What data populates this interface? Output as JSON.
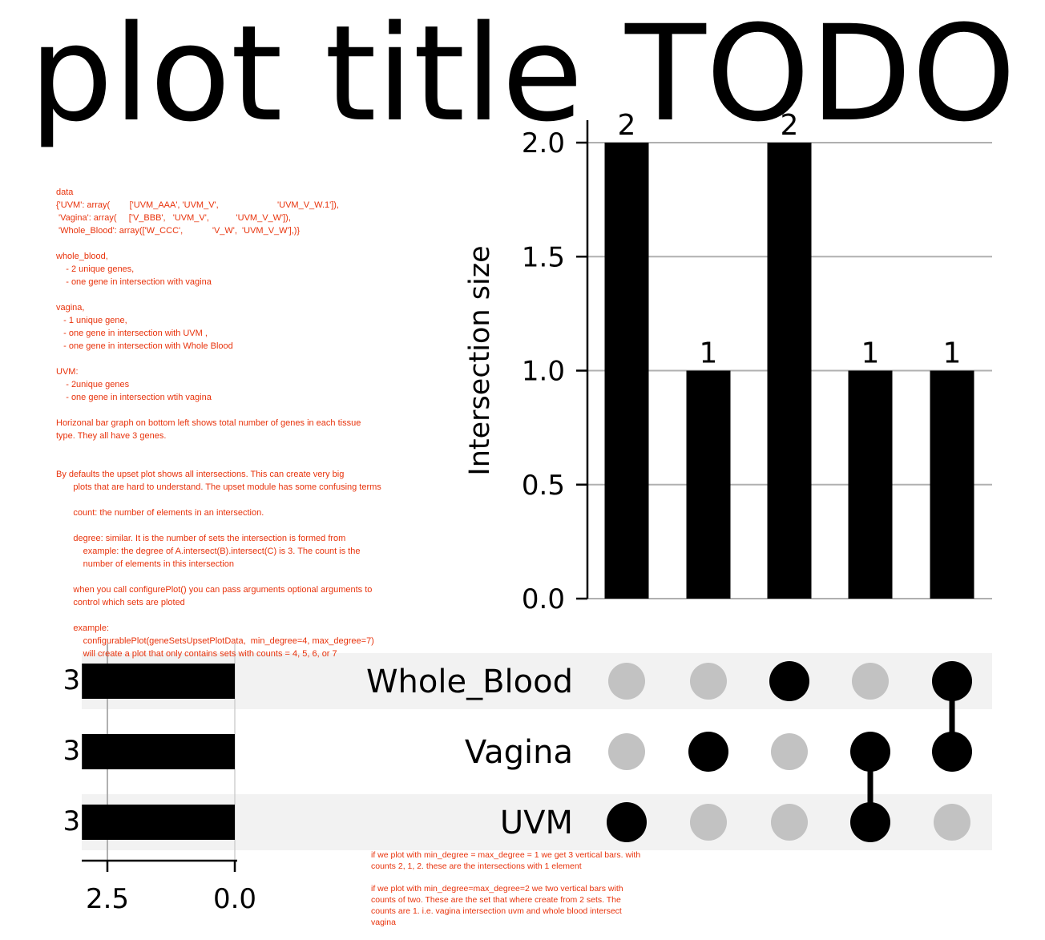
{
  "title": "plot title TODO",
  "annotations": {
    "main": "data\n{'UVM': array(        ['UVM_AAA', 'UVM_V',                        'UVM_V_W.1']),\n 'Vagina': array(     ['V_BBB',   'UVM_V',           'UVM_V_W']),\n 'Whole_Blood': array(['W_CCC',            'V_W',  'UVM_V_W'],)}\n\nwhole_blood,\n    - 2 unique genes,\n    - one gene in intersection with vagina\n\nvagina,\n   - 1 unique gene,\n   - one gene in intersection with UVM ,\n   - one gene in intersection with Whole Blood\n\nUVM:\n    - 2unique genes\n    - one gene in intersection wtih vagina\n\nHorizonal bar graph on bottom left shows total number of genes in each tissue\ntype. They all have 3 genes.\n\n\nBy defaults the upset plot shows all intersections. This can create very big\n       plots that are hard to understand. The upset module has some confusing terms\n\n       count: the number of elements in an intersection.\n\n       degree: similar. It is the number of sets the intersection is formed from\n           example: the degree of A.intersect(B).intersect(C) is 3. The count is the\n           number of elements in this intersection\n\n       when you call configurePlot() you can pass arguments optional arguments to\n       control which sets are ploted\n\n       example:\n           configurablePlot(geneSetsUpsetPlotData,  min_degree=4, max_degree=7)\n           will create a plot that only contains sets with counts = 4, 5, 6, or 7",
    "bottom": "if we plot with min_degree = max_degree = 1 we get 3 vertical bars. with\ncounts 2, 1, 2. these are the intersections with 1 element\n\nif we plot with min_degree=max_degree=2 we two vertical bars with\ncounts of two. These are the set that where create from 2 sets. The\ncounts are 1. i.e. vagina intersection uvm and whole blood intersect\nvagina"
  },
  "chart_data": {
    "type": "bar",
    "subtype": "upset",
    "title": "plot title TODO",
    "sets": [
      "Whole_Blood",
      "Vagina",
      "UVM"
    ],
    "intersections": [
      {
        "members": [
          "UVM"
        ],
        "size": 2
      },
      {
        "members": [
          "Vagina"
        ],
        "size": 1
      },
      {
        "members": [
          "Whole_Blood"
        ],
        "size": 2
      },
      {
        "members": [
          "Vagina",
          "UVM"
        ],
        "size": 1
      },
      {
        "members": [
          "Whole_Blood",
          "Vagina"
        ],
        "size": 1
      }
    ],
    "bar_labels": [
      "2",
      "1",
      "2",
      "1",
      "1"
    ],
    "intersection_axis": {
      "ylabel": "Intersection size",
      "ylim": [
        0,
        2.1
      ],
      "ticks": [
        0.0,
        0.5,
        1.0,
        1.5,
        2.0
      ],
      "tick_labels": [
        "0.0",
        "0.5",
        "1.0",
        "1.5",
        "2.0"
      ],
      "grid": true
    },
    "set_sizes": {
      "values": [
        3,
        3,
        3
      ],
      "labels": [
        "3",
        "3",
        "3"
      ],
      "xlim": [
        3.0,
        0.0
      ],
      "ticks": [
        2.5,
        0.0
      ],
      "tick_labels": [
        "2.5",
        "0.0"
      ],
      "orientation": "horizontal-reversed"
    },
    "colors": {
      "bar": "#000000",
      "dot_active": "#000000",
      "dot_inactive": "#c2c2c2",
      "grid": "#b0b0b0",
      "row_shade": "#f2f2f2",
      "annotation": "#e8330c"
    }
  }
}
